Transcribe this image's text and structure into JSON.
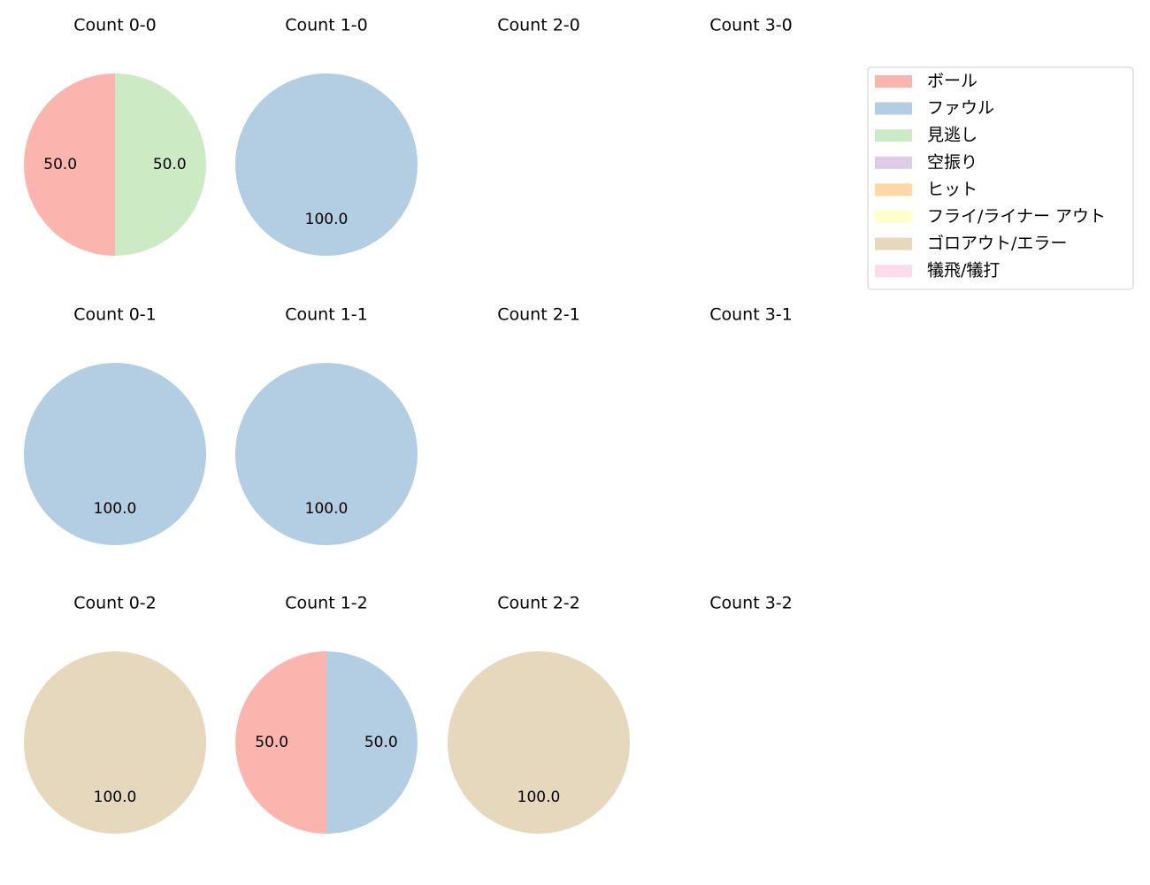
{
  "legend": {
    "items": [
      {
        "label": "ボール",
        "color": "#fbb4ae"
      },
      {
        "label": "ファウル",
        "color": "#b3cde3"
      },
      {
        "label": "見逃し",
        "color": "#ccebc5"
      },
      {
        "label": "空振り",
        "color": "#decbe4"
      },
      {
        "label": "ヒット",
        "color": "#fed9a6"
      },
      {
        "label": "フライ/ライナー アウト",
        "color": "#ffffcc"
      },
      {
        "label": "ゴロアウト/エラー",
        "color": "#e5d8bd"
      },
      {
        "label": "犠飛/犠打",
        "color": "#fddaec"
      }
    ]
  },
  "chart_data": [
    {
      "type": "pie",
      "title": "Count 0-0",
      "slices": [
        {
          "category": "ボール",
          "value": 50.0
        },
        {
          "category": "見逃し",
          "value": 50.0
        }
      ]
    },
    {
      "type": "pie",
      "title": "Count 1-0",
      "slices": [
        {
          "category": "ファウル",
          "value": 100.0
        }
      ]
    },
    {
      "type": "pie",
      "title": "Count 2-0",
      "slices": []
    },
    {
      "type": "pie",
      "title": "Count 3-0",
      "slices": []
    },
    {
      "type": "pie",
      "title": "Count 0-1",
      "slices": [
        {
          "category": "ファウル",
          "value": 100.0
        }
      ]
    },
    {
      "type": "pie",
      "title": "Count 1-1",
      "slices": [
        {
          "category": "ファウル",
          "value": 100.0
        }
      ]
    },
    {
      "type": "pie",
      "title": "Count 2-1",
      "slices": []
    },
    {
      "type": "pie",
      "title": "Count 3-1",
      "slices": []
    },
    {
      "type": "pie",
      "title": "Count 0-2",
      "slices": [
        {
          "category": "ゴロアウト/エラー",
          "value": 100.0
        }
      ]
    },
    {
      "type": "pie",
      "title": "Count 1-2",
      "slices": [
        {
          "category": "ボール",
          "value": 50.0
        },
        {
          "category": "ファウル",
          "value": 50.0
        }
      ]
    },
    {
      "type": "pie",
      "title": "Count 2-2",
      "slices": [
        {
          "category": "ゴロアウト/エラー",
          "value": 100.0
        }
      ]
    },
    {
      "type": "pie",
      "title": "Count 3-2",
      "slices": []
    }
  ]
}
